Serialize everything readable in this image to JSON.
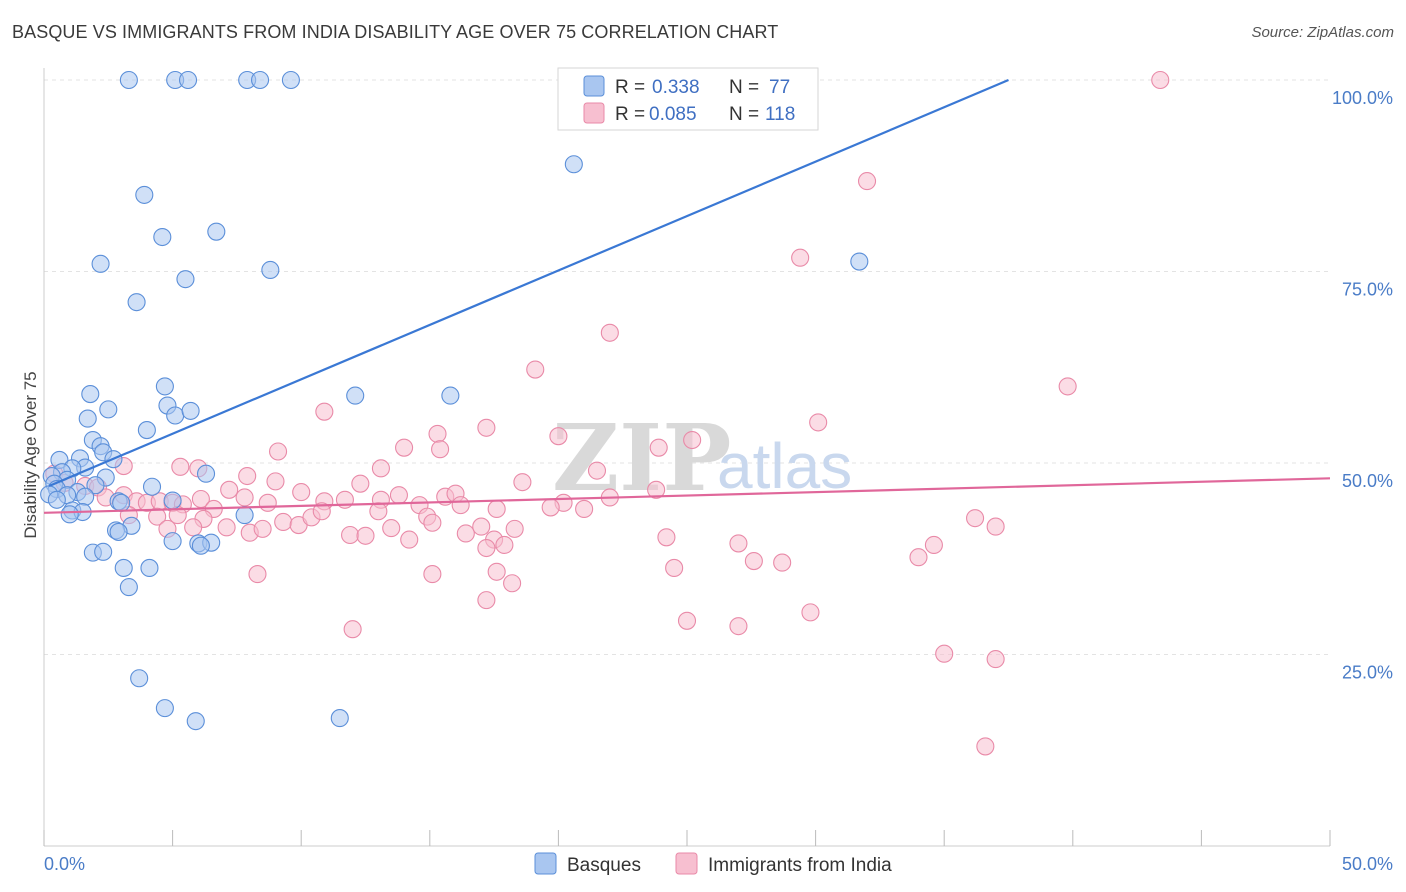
{
  "title": "BASQUE VS IMMIGRANTS FROM INDIA DISABILITY AGE OVER 75 CORRELATION CHART",
  "source": "Source: ZipAtlas.com",
  "watermark": {
    "zip": "ZIP",
    "atlas": "atlas"
  },
  "colors": {
    "basques_fill": "#a9c6f0",
    "basques_stroke": "#5b8fd9",
    "basques_line": "#3a78d4",
    "india_fill": "#f7bfd0",
    "india_stroke": "#e98aa8",
    "india_line": "#e0679a",
    "grid": "#e3e3e3",
    "axis_label": "#4a7cc7"
  },
  "legend": {
    "r_label": "R =",
    "n_label": "N =",
    "series": [
      {
        "r": "0.338",
        "n": "77"
      },
      {
        "r": "0.085",
        "n": "118"
      }
    ]
  },
  "bottom_legend": [
    "Basques",
    "Immigrants from India"
  ],
  "chart_data": {
    "type": "scatter",
    "ylabel": "Disability Age Over 75",
    "xlim": [
      0,
      50
    ],
    "ylim": [
      0,
      100
    ],
    "x_ticks": [
      {
        "value": 0,
        "label": "0.0%"
      },
      {
        "value": 50,
        "label": "50.0%"
      }
    ],
    "y_ticks": [
      {
        "value": 25,
        "label": "25.0%"
      },
      {
        "value": 50,
        "label": "50.0%"
      },
      {
        "value": 75,
        "label": "75.0%"
      },
      {
        "value": 100,
        "label": "100.0%"
      }
    ],
    "grid": "horizontal dashed",
    "series": [
      {
        "name": "Basques",
        "r": 0.338,
        "n": 77,
        "trend": {
          "x": [
            0.2,
            37.5
          ],
          "y": [
            47,
            100
          ]
        },
        "points": [
          [
            3.3,
            100
          ],
          [
            5.1,
            100
          ],
          [
            5.6,
            100
          ],
          [
            7.9,
            100
          ],
          [
            8.4,
            100
          ],
          [
            9.6,
            100
          ],
          [
            20.6,
            89
          ],
          [
            3.9,
            85
          ],
          [
            4.6,
            79.5
          ],
          [
            6.7,
            80.2
          ],
          [
            2.2,
            76
          ],
          [
            8.8,
            75.2
          ],
          [
            31.7,
            76.3
          ],
          [
            5.5,
            74
          ],
          [
            3.6,
            71
          ],
          [
            4.7,
            60
          ],
          [
            1.8,
            59
          ],
          [
            12.1,
            58.8
          ],
          [
            15.8,
            58.8
          ],
          [
            4.8,
            57.5
          ],
          [
            2.5,
            57
          ],
          [
            5.1,
            56.2
          ],
          [
            5.7,
            56.8
          ],
          [
            1.7,
            55.8
          ],
          [
            4.0,
            54.3
          ],
          [
            1.9,
            53
          ],
          [
            2.2,
            52.2
          ],
          [
            2.3,
            51.4
          ],
          [
            0.6,
            50.4
          ],
          [
            1.4,
            50.6
          ],
          [
            2.7,
            50.5
          ],
          [
            1.6,
            49.4
          ],
          [
            1.1,
            49.3
          ],
          [
            0.7,
            48.8
          ],
          [
            0.3,
            48.3
          ],
          [
            6.3,
            48.6
          ],
          [
            2.4,
            48.1
          ],
          [
            0.9,
            47.8
          ],
          [
            0.4,
            47.3
          ],
          [
            2.0,
            47.1
          ],
          [
            4.2,
            46.9
          ],
          [
            0.5,
            46.6
          ],
          [
            1.3,
            46.2
          ],
          [
            0.9,
            45.8
          ],
          [
            0.2,
            45.9
          ],
          [
            1.6,
            45.6
          ],
          [
            0.5,
            45.2
          ],
          [
            2.9,
            45.0
          ],
          [
            5.0,
            45.1
          ],
          [
            3.0,
            44.8
          ],
          [
            1.1,
            43.8
          ],
          [
            1.5,
            43.6
          ],
          [
            1.0,
            43.3
          ],
          [
            7.8,
            43.2
          ],
          [
            3.4,
            41.8
          ],
          [
            2.8,
            41.2
          ],
          [
            2.9,
            41.0
          ],
          [
            5.0,
            39.8
          ],
          [
            6.0,
            39.5
          ],
          [
            6.5,
            39.6
          ],
          [
            6.1,
            39.2
          ],
          [
            1.9,
            38.3
          ],
          [
            2.3,
            38.4
          ],
          [
            3.1,
            36.3
          ],
          [
            4.1,
            36.3
          ],
          [
            3.3,
            33.8
          ],
          [
            3.7,
            21.9
          ],
          [
            4.7,
            18
          ],
          [
            5.9,
            16.3
          ],
          [
            11.5,
            16.7
          ]
        ]
      },
      {
        "name": "Immigrants from India",
        "r": 0.085,
        "n": 118,
        "trend": {
          "x": [
            0,
            50
          ],
          "y": [
            43.5,
            48
          ]
        },
        "points": [
          [
            43.4,
            100
          ],
          [
            32.0,
            86.8
          ],
          [
            29.4,
            76.8
          ],
          [
            22.0,
            67
          ],
          [
            19.1,
            62.2
          ],
          [
            39.8,
            60
          ],
          [
            30.1,
            55.3
          ],
          [
            17.2,
            54.6
          ],
          [
            10.9,
            56.7
          ],
          [
            15.3,
            53.8
          ],
          [
            14.0,
            52
          ],
          [
            15.4,
            51.8
          ],
          [
            9.1,
            51.5
          ],
          [
            20.0,
            53.5
          ],
          [
            25.2,
            53
          ],
          [
            23.9,
            52
          ],
          [
            13.1,
            49.3
          ],
          [
            21.5,
            49
          ],
          [
            7.9,
            48.3
          ],
          [
            5.3,
            49.5
          ],
          [
            6.0,
            49.3
          ],
          [
            3.1,
            49.6
          ],
          [
            0.4,
            48.6
          ],
          [
            0.8,
            47.4
          ],
          [
            1.6,
            47.0
          ],
          [
            2.1,
            46.8
          ],
          [
            2.4,
            45.5
          ],
          [
            3.1,
            45.8
          ],
          [
            3.6,
            45.0
          ],
          [
            4.0,
            44.8
          ],
          [
            4.5,
            45.0
          ],
          [
            5.0,
            44.8
          ],
          [
            5.4,
            44.6
          ],
          [
            6.1,
            45.3
          ],
          [
            6.6,
            44.0
          ],
          [
            7.2,
            46.5
          ],
          [
            7.8,
            45.5
          ],
          [
            8.7,
            44.8
          ],
          [
            9.0,
            47.6
          ],
          [
            10.0,
            46.2
          ],
          [
            10.9,
            45.0
          ],
          [
            11.7,
            45.2
          ],
          [
            12.3,
            47.3
          ],
          [
            13.1,
            45.2
          ],
          [
            13.8,
            45.8
          ],
          [
            14.6,
            44.5
          ],
          [
            15.6,
            45.6
          ],
          [
            16.0,
            46.0
          ],
          [
            16.2,
            44.5
          ],
          [
            17.6,
            44.0
          ],
          [
            18.6,
            47.5
          ],
          [
            20.2,
            44.8
          ],
          [
            22.0,
            45.5
          ],
          [
            23.8,
            46.5
          ],
          [
            3.3,
            43.2
          ],
          [
            4.4,
            43.0
          ],
          [
            5.2,
            43.2
          ],
          [
            6.2,
            42.7
          ],
          [
            7.1,
            41.6
          ],
          [
            8.0,
            40.9
          ],
          [
            9.3,
            42.3
          ],
          [
            9.9,
            41.9
          ],
          [
            10.4,
            42.9
          ],
          [
            10.8,
            43.7
          ],
          [
            11.9,
            40.6
          ],
          [
            12.5,
            40.5
          ],
          [
            13.0,
            43.7
          ],
          [
            13.5,
            41.5
          ],
          [
            14.2,
            40.0
          ],
          [
            14.9,
            43.0
          ],
          [
            15.1,
            42.2
          ],
          [
            16.4,
            40.8
          ],
          [
            17.0,
            41.7
          ],
          [
            17.5,
            40.0
          ],
          [
            18.3,
            41.4
          ],
          [
            19.7,
            44.2
          ],
          [
            21.0,
            44.0
          ],
          [
            4.8,
            41.4
          ],
          [
            5.8,
            41.6
          ],
          [
            8.5,
            41.4
          ],
          [
            17.2,
            38.9
          ],
          [
            17.9,
            39.3
          ],
          [
            24.2,
            40.3
          ],
          [
            27.0,
            39.5
          ],
          [
            34.6,
            39.3
          ],
          [
            36.2,
            42.8
          ],
          [
            37.0,
            41.7
          ],
          [
            34.0,
            37.7
          ],
          [
            8.3,
            35.5
          ],
          [
            15.1,
            35.5
          ],
          [
            17.6,
            35.8
          ],
          [
            18.2,
            34.3
          ],
          [
            17.2,
            32.1
          ],
          [
            24.5,
            36.3
          ],
          [
            27.6,
            37.2
          ],
          [
            28.7,
            37.0
          ],
          [
            29.8,
            30.5
          ],
          [
            25.0,
            29.4
          ],
          [
            27.0,
            28.7
          ],
          [
            12.0,
            28.3
          ],
          [
            35.0,
            25.1
          ],
          [
            37.0,
            24.4
          ],
          [
            36.6,
            13
          ]
        ]
      }
    ]
  }
}
